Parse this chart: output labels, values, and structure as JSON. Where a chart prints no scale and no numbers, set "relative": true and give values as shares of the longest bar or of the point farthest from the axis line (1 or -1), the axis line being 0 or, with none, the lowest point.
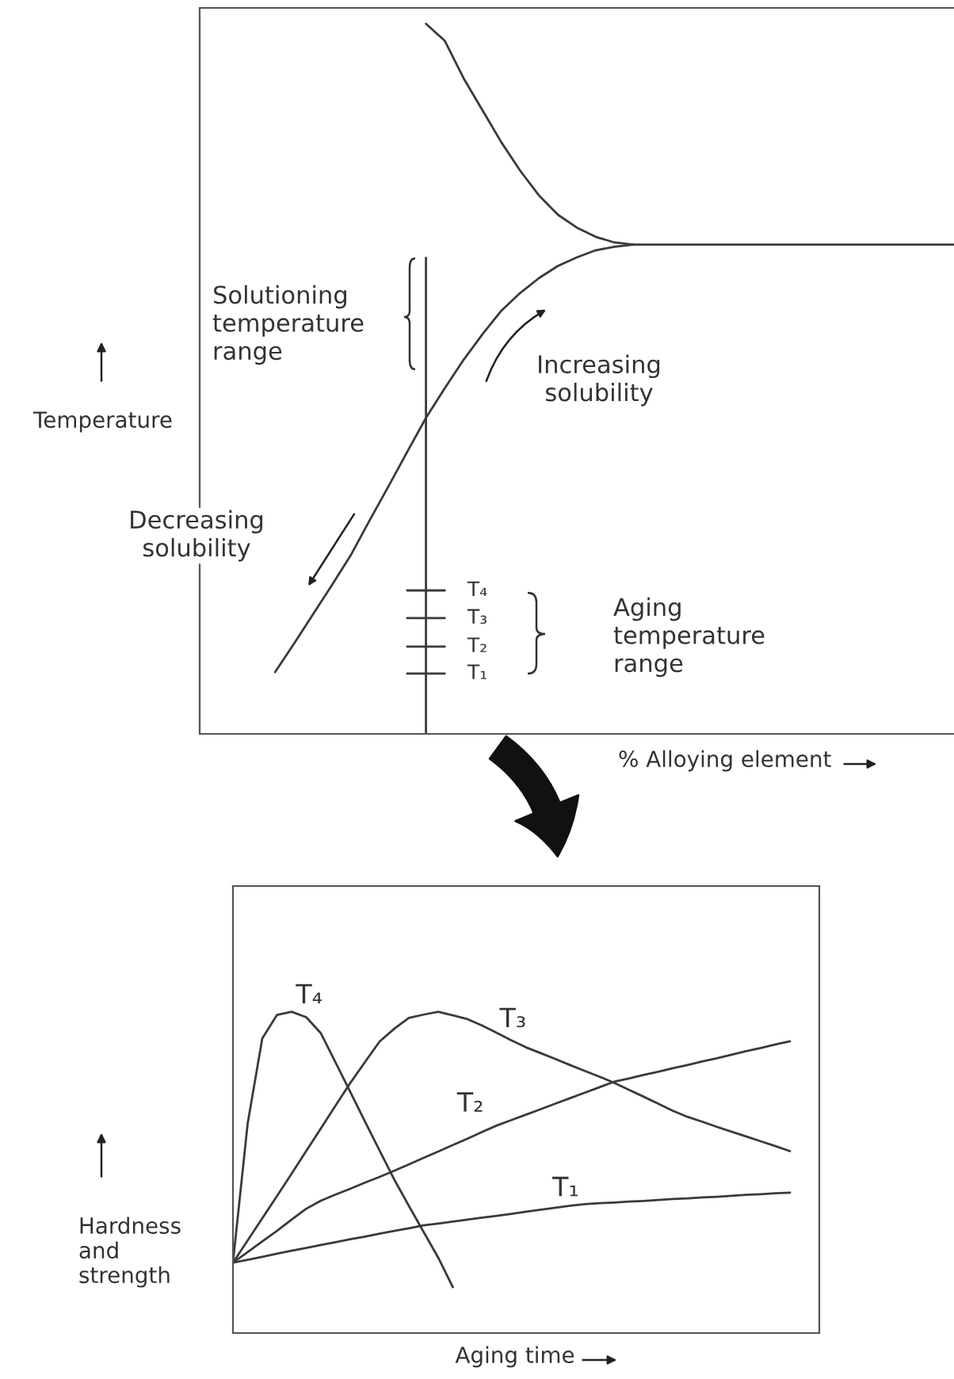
{
  "chart_data": [
    {
      "type": "line",
      "relative": true,
      "xlabel": "% Alloying element",
      "ylabel": "Temperature",
      "tick_labels": false,
      "marker": "none",
      "line_style": "solid",
      "categories": [
        null,
        null,
        null,
        null,
        null,
        null,
        null,
        null,
        null,
        null,
        null,
        null,
        null,
        null,
        null,
        null,
        null,
        null,
        null,
        null,
        null,
        null,
        null,
        null,
        null,
        null,
        null,
        null,
        null,
        null,
        null,
        null,
        null,
        null,
        null,
        null,
        null,
        null,
        null,
        null,
        null
      ],
      "series": [
        {
          "color": "#3a3a3a",
          "values": [
            null,
            null,
            null,
            null,
            null,
            null,
            null,
            null,
            null,
            null,
            null,
            null,
            1.0,
            0.976,
            0.923,
            0.878,
            0.833,
            0.793,
            0.758,
            0.731,
            0.713,
            0.7,
            0.692,
            0.689,
            0.689,
            0.689,
            0.689,
            0.689,
            0.689,
            0.689,
            0.689,
            0.689,
            0.689,
            0.689,
            0.689,
            0.689,
            0.689,
            0.689,
            0.689,
            0.689,
            0.689
          ]
        },
        {
          "color": "#3a3a3a",
          "values": [
            null,
            null,
            null,
            null,
            0.087,
            0.127,
            0.168,
            0.209,
            0.251,
            0.3,
            0.348,
            0.397,
            0.445,
            0.487,
            0.527,
            0.563,
            0.596,
            0.621,
            0.642,
            0.659,
            0.671,
            0.681,
            0.686,
            0.689,
            null,
            null,
            null,
            null,
            null,
            null,
            null,
            null,
            null,
            null,
            null,
            null,
            null,
            null,
            null,
            null,
            null
          ]
        },
        {
          "name": "T₄",
          "color": "#3a3a3a",
          "values": [
            null,
            null,
            null,
            null,
            null,
            null,
            null,
            null,
            null,
            null,
            null,
            0.202,
            0.202,
            0.202,
            null,
            null,
            null,
            null,
            null,
            null,
            null,
            null,
            null,
            null,
            null,
            null,
            null,
            null,
            null,
            null,
            null,
            null,
            null,
            null,
            null,
            null,
            null,
            null,
            null,
            null,
            null
          ]
        },
        {
          "name": "T₃",
          "color": "#3a3a3a",
          "values": [
            null,
            null,
            null,
            null,
            null,
            null,
            null,
            null,
            null,
            null,
            null,
            0.163,
            0.163,
            0.163,
            null,
            null,
            null,
            null,
            null,
            null,
            null,
            null,
            null,
            null,
            null,
            null,
            null,
            null,
            null,
            null,
            null,
            null,
            null,
            null,
            null,
            null,
            null,
            null,
            null,
            null,
            null
          ]
        },
        {
          "name": "T₂",
          "color": "#3a3a3a",
          "values": [
            null,
            null,
            null,
            null,
            null,
            null,
            null,
            null,
            null,
            null,
            null,
            0.123,
            0.123,
            0.123,
            null,
            null,
            null,
            null,
            null,
            null,
            null,
            null,
            null,
            null,
            null,
            null,
            null,
            null,
            null,
            null,
            null,
            null,
            null,
            null,
            null,
            null,
            null,
            null,
            null,
            null,
            null
          ]
        },
        {
          "name": "T₁",
          "color": "#3a3a3a",
          "values": [
            null,
            null,
            null,
            null,
            null,
            null,
            null,
            null,
            null,
            null,
            null,
            0.085,
            0.085,
            0.085,
            null,
            null,
            null,
            null,
            null,
            null,
            null,
            null,
            null,
            null,
            null,
            null,
            null,
            null,
            null,
            null,
            null,
            null,
            null,
            null,
            null,
            null,
            null,
            null,
            null,
            null,
            null
          ]
        }
      ],
      "annotations": [
        "Solutioning\ntemperature\nrange",
        "Increasing\nsolubility",
        "Decreasing\nsolubility",
        "Aging\ntemperature\nrange"
      ]
    },
    {
      "type": "line",
      "relative": true,
      "xlabel": "Aging time",
      "ylabel": "Hardness\nand\nstrength",
      "tick_labels": false,
      "marker": "none",
      "line_style": "solid",
      "categories": [
        null,
        null,
        null,
        null,
        null,
        null,
        null,
        null,
        null,
        null,
        null,
        null,
        null,
        null,
        null,
        null,
        null,
        null,
        null,
        null,
        null,
        null,
        null,
        null,
        null,
        null,
        null,
        null,
        null,
        null,
        null,
        null,
        null,
        null,
        null,
        null,
        null,
        null,
        null,
        null,
        null
      ],
      "series": [
        {
          "name": "T₄",
          "color": "#3a3a3a",
          "values": [
            0.219,
            0.651,
            0.917,
            0.99,
            1.0,
            0.983,
            0.933,
            0.842,
            0.751,
            0.659,
            0.568,
            0.478,
            0.396,
            0.315,
            0.235,
            0.143,
            null,
            null,
            null,
            null,
            null,
            null,
            null,
            null,
            null,
            null,
            null,
            null,
            null,
            null,
            null,
            null,
            null,
            null,
            null,
            null,
            null,
            null,
            null,
            null,
            null
          ]
        },
        {
          "name": "T₃",
          "color": "#3a3a3a",
          "values": [
            0.219,
            0.288,
            0.357,
            0.426,
            0.496,
            0.567,
            0.637,
            0.708,
            0.778,
            0.843,
            0.907,
            0.947,
            0.981,
            0.991,
            1.0,
            0.989,
            0.977,
            0.957,
            0.934,
            0.911,
            0.889,
            0.871,
            0.853,
            0.834,
            0.816,
            0.798,
            0.779,
            0.757,
            0.736,
            0.714,
            0.692,
            0.673,
            0.658,
            0.642,
            0.627,
            0.612,
            0.597,
            0.582,
            0.566,
            null,
            null
          ]
        },
        {
          "name": "T₂",
          "color": "#3a3a3a",
          "values": [
            0.219,
            0.252,
            0.285,
            0.318,
            0.353,
            0.387,
            0.412,
            0.431,
            0.449,
            0.468,
            0.486,
            0.505,
            0.525,
            0.545,
            0.565,
            0.585,
            0.605,
            0.626,
            0.646,
            0.663,
            0.68,
            0.697,
            0.714,
            0.731,
            0.748,
            0.765,
            0.782,
            0.792,
            0.803,
            0.813,
            0.824,
            0.834,
            0.845,
            0.855,
            0.866,
            0.877,
            0.887,
            0.898,
            0.908,
            null,
            null
          ]
        },
        {
          "name": "T₁",
          "color": "#3a3a3a",
          "values": [
            0.219,
            0.228,
            0.237,
            0.247,
            0.256,
            0.265,
            0.274,
            0.283,
            0.292,
            0.3,
            0.309,
            0.318,
            0.326,
            0.335,
            0.341,
            0.347,
            0.353,
            0.359,
            0.365,
            0.371,
            0.378,
            0.384,
            0.39,
            0.396,
            0.401,
            0.404,
            0.406,
            0.409,
            0.411,
            0.414,
            0.417,
            0.419,
            0.422,
            0.424,
            0.427,
            0.43,
            0.432,
            0.435,
            0.437,
            null,
            null
          ]
        }
      ]
    }
  ]
}
